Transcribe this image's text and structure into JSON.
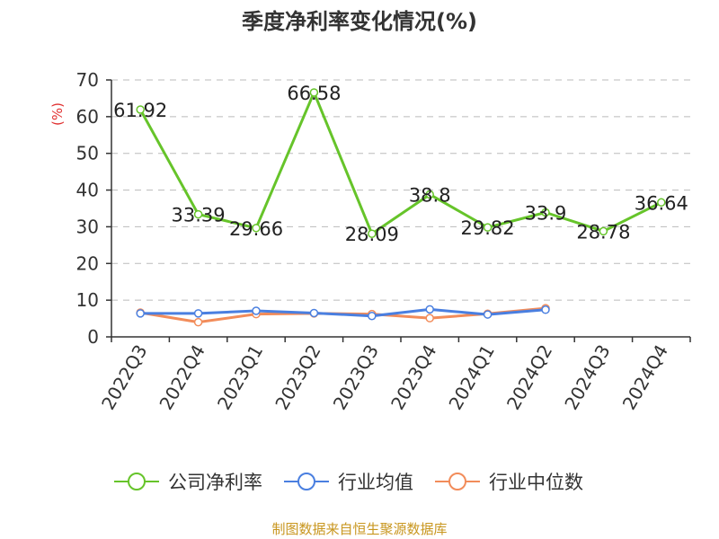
{
  "chart_data": {
    "type": "line",
    "title": "季度净利率变化情况(%)",
    "xlabel": "",
    "ylabel": "(%)",
    "ylim": [
      0,
      70
    ],
    "yticks": [
      0,
      10,
      20,
      30,
      40,
      50,
      60,
      70
    ],
    "categories": [
      "2022Q3",
      "2022Q4",
      "2023Q1",
      "2023Q2",
      "2023Q3",
      "2023Q4",
      "2024Q1",
      "2024Q2",
      "2024Q3",
      "2024Q4"
    ],
    "grid": true,
    "legend_position": "bottom",
    "series": [
      {
        "name": "公司净利率",
        "color": "#66c42a",
        "show_labels": true,
        "values": [
          61.92,
          33.39,
          29.66,
          66.58,
          28.09,
          38.8,
          29.82,
          33.9,
          28.78,
          36.64
        ],
        "labels": [
          "61.92",
          "33.39",
          "29.66",
          "66.58",
          "28.09",
          "38.8",
          "29.82",
          "33.9",
          "28.78",
          "36.64"
        ]
      },
      {
        "name": "行业均值",
        "color": "#4a7fe0",
        "show_labels": false,
        "values": [
          6.4,
          6.4,
          7.1,
          6.5,
          5.7,
          7.5,
          6.1,
          7.4,
          null,
          null
        ]
      },
      {
        "name": "行业中位数",
        "color": "#f28c5a",
        "show_labels": false,
        "values": [
          6.6,
          4.0,
          6.2,
          6.4,
          6.2,
          5.1,
          6.3,
          7.8,
          null,
          null
        ]
      }
    ]
  },
  "source": "制图数据来自恒生聚源数据库"
}
